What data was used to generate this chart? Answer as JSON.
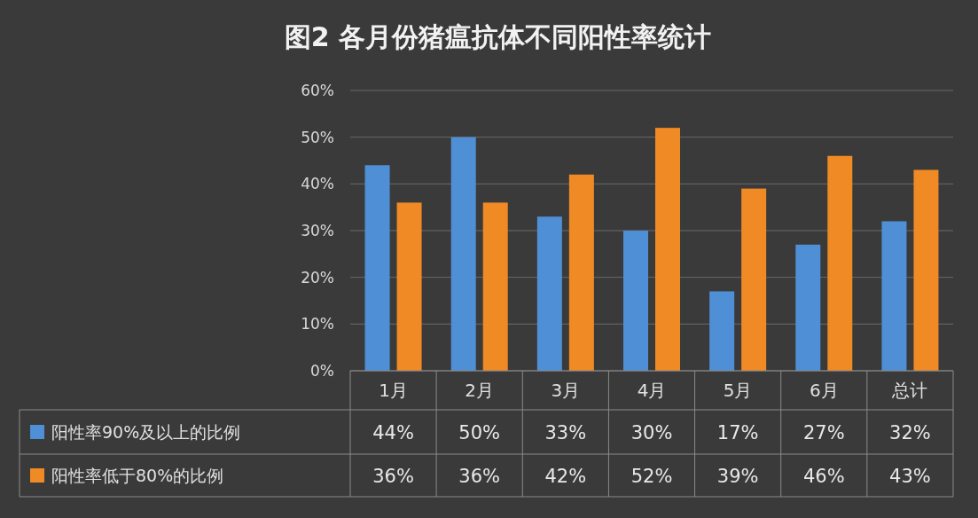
{
  "chart_data": {
    "type": "bar",
    "title": "图2 各月份猪瘟抗体不同阳性率统计",
    "categories": [
      "1月",
      "2月",
      "3月",
      "4月",
      "5月",
      "6月",
      "总计"
    ],
    "series": [
      {
        "name": "阳性率90%及以上的比例",
        "color": "#4f8fd6",
        "values": [
          44,
          50,
          33,
          30,
          17,
          27,
          32
        ],
        "value_labels": [
          "44%",
          "50%",
          "33%",
          "30%",
          "17%",
          "27%",
          "32%"
        ]
      },
      {
        "name": "阳性率低于80%的比例",
        "color": "#f08a24",
        "values": [
          36,
          36,
          42,
          52,
          39,
          46,
          43
        ],
        "value_labels": [
          "36%",
          "36%",
          "42%",
          "52%",
          "39%",
          "46%",
          "43%"
        ]
      }
    ],
    "ylim": [
      0,
      60
    ],
    "yticks": [
      {
        "value": 0,
        "label": "0%"
      },
      {
        "value": 10,
        "label": "10%"
      },
      {
        "value": 20,
        "label": "20%"
      },
      {
        "value": 30,
        "label": "30%"
      },
      {
        "value": 40,
        "label": "40%"
      },
      {
        "value": 50,
        "label": "50%"
      },
      {
        "value": 60,
        "label": "60%"
      }
    ],
    "grid": "y",
    "legend": "bottom left"
  }
}
